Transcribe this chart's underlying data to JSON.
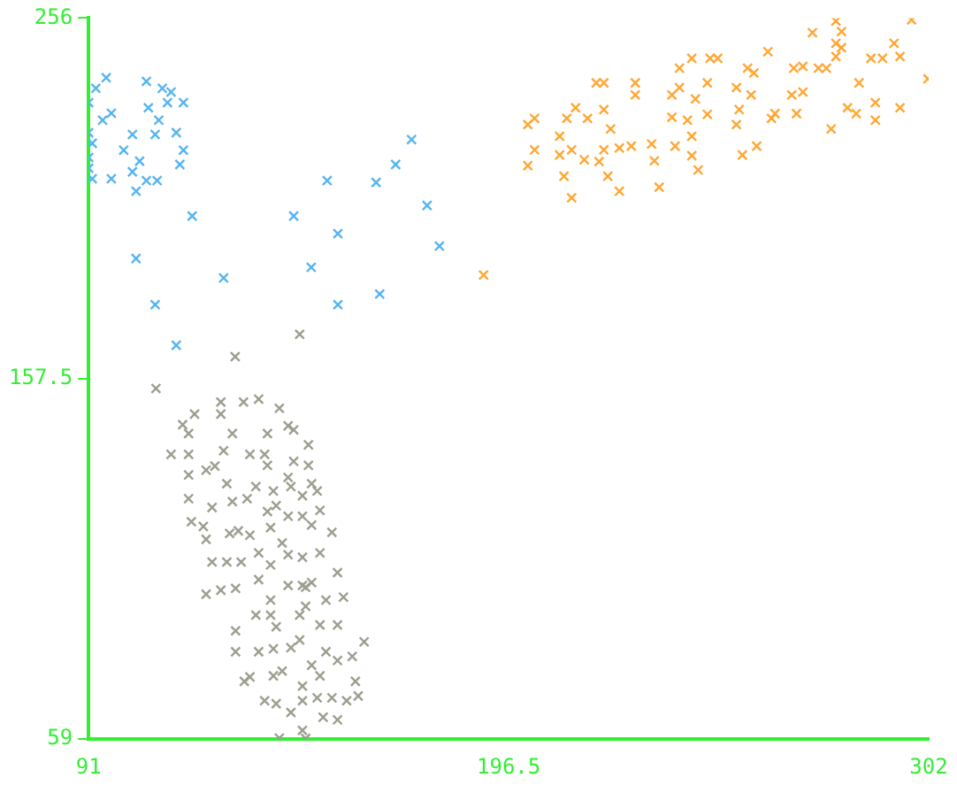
{
  "chart_data": {
    "type": "scatter",
    "xlim": [
      91,
      302
    ],
    "ylim": [
      59,
      256
    ],
    "xticks": [
      91,
      196.5,
      302
    ],
    "yticks": [
      59,
      157.5,
      256
    ],
    "marker": "cross",
    "series": [
      {
        "color": "#55b4f0",
        "x": [
          95.4,
          92.8,
          105.5,
          109.5,
          111.7,
          114.8,
          110.8,
          106.0,
          96.7,
          94.5,
          91.0,
          108.6,
          102.0,
          107.7,
          113.0,
          91.0,
          91.9,
          99.8,
          114.8,
          91.0,
          103.8,
          113.9,
          102.0,
          91.0,
          91.9,
          96.7,
          105.5,
          108.2,
          102.9,
          117.0,
          102.9,
          107.7,
          113.0,
          124.9,
          142.5,
          150.9,
          153.6,
          146.9,
          153.6,
          163.2,
          168.1,
          172.1,
          176.0,
          179.1,
          164.1
        ],
        "values": [
          239.7,
          236.8,
          238.7,
          236.8,
          235.8,
          232.9,
          232.9,
          231.5,
          230.0,
          228.1,
          232.9,
          228.1,
          224.2,
          224.2,
          224.7,
          224.7,
          221.8,
          219.9,
          219.9,
          217.9,
          216.9,
          216.0,
          214.0,
          215.0,
          212.1,
          212.1,
          211.6,
          211.6,
          208.7,
          201.9,
          190.3,
          177.7,
          166.6,
          185.0,
          201.9,
          211.6,
          197.1,
          187.9,
          177.7,
          211.1,
          216.0,
          222.8,
          204.8,
          193.7,
          180.6
        ]
      },
      {
        "color": "#ffa733",
        "x": [
          190.2,
          201.3,
          203.0,
          201.3,
          203.0,
          209.3,
          209.3,
          211.1,
          213.3,
          216.3,
          210.4,
          212.3,
          212.3,
          215.5,
          219.2,
          220.4,
          221.4,
          222.1,
          220.4,
          218.5,
          220.4,
          224.3,
          224.3,
          227.3,
          228.3,
          228.3,
          232.4,
          233.1,
          234.3,
          237.5,
          237.5,
          238.3,
          239.4,
          239.4,
          241.4,
          242.5,
          242.5,
          242.5,
          243.4,
          244.1,
          246.4,
          246.4,
          247.1,
          249.0,
          253.7,
          253.7,
          254.4,
          257.4,
          256.5,
          258.1,
          255.2,
          258.8,
          261.6,
          262.5,
          263.4,
          267.6,
          268.1,
          270.4,
          268.8,
          270.4,
          274.3,
          276.3,
          272.8,
          277.5,
          278.7,
          280.1,
          278.7,
          280.1,
          278.7,
          284.5,
          281.6,
          283.8,
          287.5,
          290.4,
          288.6,
          288.6,
          293.3,
          294.8,
          294.8,
          297.7,
          301.8
        ],
        "values": [
          185.8,
          226.9,
          228.6,
          215.7,
          220.0,
          223.7,
          218.6,
          228.6,
          231.5,
          228.6,
          212.8,
          206.9,
          220.0,
          217.3,
          216.8,
          220.0,
          212.8,
          225.7,
          231.0,
          238.3,
          238.3,
          220.5,
          208.7,
          221.0,
          238.3,
          235.0,
          221.6,
          217.0,
          209.8,
          235.0,
          228.9,
          221.0,
          242.3,
          237.0,
          228.1,
          245.0,
          223.7,
          218.4,
          233.9,
          214.5,
          238.3,
          229.7,
          245.0,
          245.0,
          237.0,
          226.9,
          231.0,
          235.0,
          242.3,
          241.0,
          218.6,
          221.0,
          246.8,
          228.6,
          229.9,
          235.0,
          242.3,
          242.8,
          229.9,
          235.8,
          242.3,
          242.3,
          252.0,
          225.7,
          255.2,
          252.3,
          249.1,
          247.9,
          245.5,
          238.3,
          231.5,
          229.9,
          245.0,
          245.0,
          232.9,
          228.1,
          249.1,
          245.5,
          231.5,
          255.5,
          239.4
        ]
      },
      {
        "color": "#9a9f8e",
        "x": [
          144.0,
          127.8,
          107.9,
          124.2,
          129.9,
          133.7,
          138.9,
          117.6,
          114.6,
          116.1,
          124.2,
          127.1,
          135.9,
          141.1,
          142.5,
          146.2,
          111.7,
          116.1,
          124.9,
          131.5,
          135.2,
          135.9,
          142.5,
          146.2,
          116.1,
          120.5,
          122.7,
          125.7,
          133.0,
          137.4,
          141.1,
          141.8,
          144.7,
          147.0,
          148.4,
          116.1,
          122.0,
          127.1,
          130.8,
          135.9,
          138.1,
          141.1,
          144.7,
          149.1,
          116.8,
          119.8,
          120.5,
          126.4,
          128.6,
          131.5,
          136.7,
          147.0,
          152.1,
          122.0,
          125.7,
          129.3,
          133.7,
          139.6,
          141.1,
          144.7,
          149.1,
          136.7,
          133.7,
          141.1,
          144.7,
          147.0,
          120.5,
          124.2,
          127.9,
          136.7,
          145.5,
          150.6,
          153.5,
          155.0,
          133.0,
          136.7,
          138.1,
          144.0,
          149.1,
          153.5,
          145.5,
          127.9,
          127.9,
          133.7,
          137.4,
          141.8,
          144.0,
          150.6,
          153.5,
          157.2,
          160.2,
          147.0,
          130.1,
          131.5,
          137.4,
          139.6,
          144.7,
          149.1,
          158.0,
          135.2,
          138.1,
          141.8,
          144.7,
          148.4,
          152.1,
          155.8,
          153.5,
          138.9,
          145.5,
          144.7,
          149.9,
          158.7
        ],
        "values": [
          169.6,
          163.5,
          154.8,
          151.1,
          151.1,
          151.9,
          149.4,
          147.8,
          144.9,
          142.5,
          147.8,
          142.5,
          142.5,
          144.6,
          143.5,
          139.4,
          136.8,
          136.8,
          137.8,
          136.8,
          136.8,
          133.8,
          134.9,
          133.8,
          131.2,
          132.5,
          133.6,
          128.8,
          128.0,
          126.8,
          130.5,
          128.0,
          125.5,
          128.8,
          126.8,
          124.7,
          122.3,
          123.9,
          124.7,
          121.2,
          122.8,
          119.9,
          119.9,
          121.5,
          118.4,
          117.1,
          113.6,
          115.2,
          115.9,
          114.7,
          116.8,
          117.5,
          115.5,
          107.4,
          107.4,
          107.4,
          109.9,
          112.6,
          109.4,
          108.7,
          109.9,
          106.6,
          102.6,
          101.0,
          101.0,
          101.8,
          98.6,
          99.7,
          100.2,
          97.0,
          100.5,
          97.0,
          104.5,
          97.8,
          92.9,
          92.9,
          89.7,
          92.9,
          90.2,
          90.2,
          95.3,
          88.6,
          82.9,
          82.9,
          83.7,
          84.0,
          86.1,
          82.9,
          80.5,
          81.6,
          85.6,
          79.2,
          74.8,
          76.0,
          76.3,
          77.6,
          73.5,
          76.3,
          74.8,
          69.5,
          68.7,
          66.3,
          69.5,
          70.3,
          70.3,
          69.5,
          64.3,
          59.3,
          59.2,
          61.4,
          65.0,
          70.8
        ]
      }
    ]
  }
}
